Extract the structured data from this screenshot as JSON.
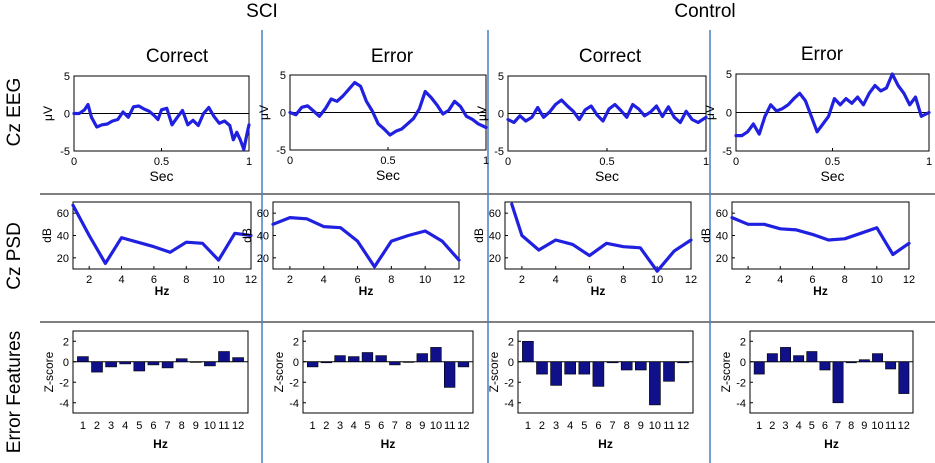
{
  "groups": [
    "SCI",
    "Control"
  ],
  "row_labels": [
    "Cz EEG",
    "Cz PSD",
    "Error Features"
  ],
  "colors": {
    "trace": "#2020e0",
    "bar": "#10108a",
    "divider": "#4a7fc1"
  },
  "chart_data": [
    {
      "type": "line",
      "row": "Cz EEG",
      "group": "SCI",
      "title": "Correct",
      "xlabel": "Sec",
      "ylabel": "μV",
      "xlim": [
        0,
        1
      ],
      "ylim": [
        -5,
        5
      ],
      "xticks": [
        "0",
        "0.5",
        "1"
      ],
      "yticks": [
        "5",
        "0",
        "-5"
      ],
      "zero_line": true,
      "x": [
        0,
        0.03,
        0.06,
        0.08,
        0.1,
        0.13,
        0.16,
        0.19,
        0.22,
        0.25,
        0.28,
        0.31,
        0.34,
        0.37,
        0.4,
        0.43,
        0.46,
        0.48,
        0.5,
        0.53,
        0.56,
        0.59,
        0.62,
        0.65,
        0.68,
        0.71,
        0.74,
        0.77,
        0.8,
        0.83,
        0.86,
        0.89,
        0.91,
        0.93,
        0.95,
        0.97,
        0.99,
        1.0
      ],
      "y": [
        0,
        0,
        0.5,
        1.2,
        -0.5,
        -1.8,
        -1.5,
        -1.4,
        -1.0,
        -0.8,
        0.2,
        -0.5,
        0.9,
        1.0,
        0.6,
        0.3,
        -0.3,
        -0.8,
        0.5,
        0.7,
        -1.5,
        -0.5,
        0.4,
        -1.5,
        -0.9,
        -1.6,
        0,
        0.8,
        -0.4,
        -1.3,
        -1.0,
        -1.6,
        -3.5,
        -2.5,
        -3.5,
        -4.8,
        -2.5,
        -1.5
      ]
    },
    {
      "type": "line",
      "row": "Cz EEG",
      "group": "SCI",
      "title": "Error",
      "xlabel": "Sec",
      "ylabel": "μV",
      "xlim": [
        0,
        1
      ],
      "ylim": [
        -5,
        5
      ],
      "xticks": [
        "0",
        "0.5",
        "1"
      ],
      "yticks": [
        "5",
        "0",
        "-5"
      ],
      "zero_line": true,
      "x": [
        0,
        0.03,
        0.06,
        0.09,
        0.12,
        0.15,
        0.18,
        0.21,
        0.24,
        0.27,
        0.3,
        0.33,
        0.36,
        0.39,
        0.42,
        0.45,
        0.48,
        0.51,
        0.54,
        0.57,
        0.6,
        0.63,
        0.66,
        0.69,
        0.72,
        0.75,
        0.78,
        0.81,
        0.84,
        0.87,
        0.9,
        0.93,
        0.96,
        1.0
      ],
      "y": [
        0,
        -0.3,
        0.7,
        0.9,
        0.2,
        -0.5,
        0.5,
        1.8,
        1.5,
        2.2,
        3.1,
        4.0,
        3.5,
        1.5,
        0.2,
        -1.5,
        -2.2,
        -3.0,
        -2.5,
        -2.2,
        -1.5,
        -0.8,
        0.5,
        2.8,
        2.0,
        1.0,
        -0.2,
        0.3,
        1.5,
        0.8,
        -0.5,
        -0.9,
        -1.5,
        -2.0
      ]
    },
    {
      "type": "line",
      "row": "Cz EEG",
      "group": "Control",
      "title": "Correct",
      "xlabel": "Sec",
      "ylabel": "μV",
      "xlim": [
        0,
        1
      ],
      "ylim": [
        -5,
        5
      ],
      "xticks": [
        "0",
        "0.5",
        "1"
      ],
      "yticks": [
        "5",
        "0",
        "-5"
      ],
      "zero_line": true,
      "x": [
        0,
        0.03,
        0.06,
        0.09,
        0.12,
        0.15,
        0.18,
        0.21,
        0.24,
        0.27,
        0.3,
        0.33,
        0.36,
        0.39,
        0.42,
        0.45,
        0.48,
        0.51,
        0.54,
        0.57,
        0.6,
        0.63,
        0.66,
        0.69,
        0.72,
        0.75,
        0.78,
        0.81,
        0.84,
        0.87,
        0.9,
        0.93,
        0.96,
        1.0
      ],
      "y": [
        -0.8,
        -1.2,
        -0.3,
        -1.0,
        -0.5,
        0.8,
        -0.5,
        0.2,
        1.2,
        1.8,
        1.0,
        0.3,
        -0.8,
        0.5,
        1.0,
        -0.2,
        -1.0,
        0.6,
        1.2,
        0.4,
        -0.5,
        1.2,
        0.6,
        -0.3,
        0.2,
        1.0,
        -0.4,
        0.9,
        -0.5,
        -1.2,
        0.3,
        -0.8,
        -1.2,
        -0.5
      ]
    },
    {
      "type": "line",
      "row": "Cz EEG",
      "group": "Control",
      "title": "Error",
      "xlabel": "Sec",
      "ylabel": "μV",
      "xlim": [
        0,
        1
      ],
      "ylim": [
        -5,
        5
      ],
      "xticks": [
        "0",
        "0.5",
        "1"
      ],
      "yticks": [
        "5",
        "0",
        "-5"
      ],
      "zero_line": true,
      "x": [
        0,
        0.03,
        0.06,
        0.09,
        0.12,
        0.15,
        0.18,
        0.21,
        0.24,
        0.27,
        0.3,
        0.33,
        0.36,
        0.39,
        0.42,
        0.45,
        0.48,
        0.51,
        0.54,
        0.57,
        0.6,
        0.63,
        0.66,
        0.69,
        0.72,
        0.75,
        0.78,
        0.81,
        0.84,
        0.87,
        0.9,
        0.93,
        0.96,
        1.0
      ],
      "y": [
        -3.0,
        -3.0,
        -2.5,
        -1.5,
        -2.8,
        -0.5,
        1.0,
        0.2,
        0.5,
        1.0,
        1.8,
        2.5,
        1.5,
        -0.5,
        -2.5,
        -1.5,
        -0.5,
        1.8,
        1.0,
        1.8,
        1.2,
        2.0,
        1.0,
        2.5,
        3.5,
        2.8,
        3.2,
        5.0,
        3.5,
        2.5,
        1.0,
        2.0,
        -0.5,
        0
      ]
    },
    {
      "type": "line",
      "row": "Cz PSD",
      "group": "SCI",
      "xlabel": "Hz",
      "ylabel": "dB",
      "xlim": [
        1,
        12
      ],
      "ylim": [
        10,
        70
      ],
      "xticks": [
        "2",
        "4",
        "6",
        "8",
        "10",
        "12"
      ],
      "yticks": [
        "60",
        "40",
        "20"
      ],
      "x": [
        1,
        2,
        3,
        4,
        5,
        6,
        7,
        8,
        9,
        10,
        11,
        12
      ],
      "y": [
        67,
        40,
        15,
        38,
        34,
        30,
        25,
        34,
        33,
        18,
        42,
        40
      ]
    },
    {
      "type": "line",
      "row": "Cz PSD",
      "group": "SCI",
      "xlabel": "Hz",
      "ylabel": "dB",
      "xlim": [
        1,
        12
      ],
      "ylim": [
        10,
        70
      ],
      "xticks": [
        "2",
        "4",
        "6",
        "8",
        "10",
        "12"
      ],
      "yticks": [
        "60",
        "40",
        "20"
      ],
      "x": [
        1,
        2,
        3,
        4,
        5,
        6,
        7,
        8,
        9,
        10,
        11,
        12
      ],
      "y": [
        50,
        56,
        55,
        48,
        47,
        35,
        12,
        35,
        40,
        44,
        35,
        18
      ]
    },
    {
      "type": "line",
      "row": "Cz PSD",
      "group": "Control",
      "xlabel": "Hz",
      "ylabel": "dB",
      "xlim": [
        1,
        12
      ],
      "ylim": [
        10,
        70
      ],
      "xticks": [
        "2",
        "4",
        "6",
        "8",
        "10",
        "12"
      ],
      "yticks": [
        "60",
        "40",
        "20"
      ],
      "x": [
        1.4,
        2,
        3,
        4,
        5,
        6,
        7,
        8,
        9,
        10,
        11,
        12
      ],
      "y": [
        68,
        40,
        27,
        36,
        32,
        22,
        33,
        30,
        29,
        8,
        26,
        36
      ]
    },
    {
      "type": "line",
      "row": "Cz PSD",
      "group": "Control",
      "xlabel": "Hz",
      "ylabel": "dB",
      "xlim": [
        1,
        12
      ],
      "ylim": [
        10,
        70
      ],
      "xticks": [
        "2",
        "4",
        "6",
        "8",
        "10",
        "12"
      ],
      "yticks": [
        "60",
        "40",
        "20"
      ],
      "x": [
        1,
        2,
        3,
        4,
        5,
        6,
        7,
        8,
        9,
        10,
        11,
        12
      ],
      "y": [
        56,
        50,
        50,
        46,
        45,
        41,
        36,
        37,
        42,
        47,
        23,
        33
      ]
    },
    {
      "type": "bar",
      "row": "Error Features",
      "group": "SCI",
      "xlabel": "Hz",
      "ylabel": "Z-score",
      "ylim": [
        -5,
        3
      ],
      "categories": [
        "1",
        "2",
        "3",
        "4",
        "5",
        "6",
        "7",
        "8",
        "9",
        "10",
        "11",
        "12"
      ],
      "yticks": [
        "2",
        "0",
        "-2",
        "-4"
      ],
      "values": [
        0.5,
        -1.0,
        -0.5,
        -0.2,
        -0.9,
        -0.3,
        -0.6,
        0.3,
        0,
        -0.4,
        1.0,
        0.4
      ]
    },
    {
      "type": "bar",
      "row": "Error Features",
      "group": "SCI",
      "xlabel": "Hz",
      "ylabel": "Z-score",
      "ylim": [
        -5,
        3
      ],
      "categories": [
        "1",
        "2",
        "3",
        "4",
        "5",
        "6",
        "7",
        "8",
        "9",
        "10",
        "11",
        "12"
      ],
      "yticks": [
        "2",
        "0",
        "-2",
        "-4"
      ],
      "values": [
        -0.5,
        -0.1,
        0.6,
        0.5,
        0.9,
        0.6,
        -0.3,
        0,
        0.8,
        1.4,
        -2.5,
        -0.5
      ]
    },
    {
      "type": "bar",
      "row": "Error Features",
      "group": "Control",
      "xlabel": "Hz",
      "ylabel": "Z-score",
      "ylim": [
        -5,
        3
      ],
      "categories": [
        "1",
        "2",
        "3",
        "4",
        "5",
        "6",
        "7",
        "8",
        "9",
        "10",
        "11",
        "12"
      ],
      "yticks": [
        "2",
        "0",
        "-2",
        "-4"
      ],
      "values": [
        2.0,
        -1.2,
        -2.3,
        -1.2,
        -1.2,
        -2.4,
        -0.1,
        -0.8,
        -0.8,
        -4.2,
        -1.9,
        -0.1
      ]
    },
    {
      "type": "bar",
      "row": "Error Features",
      "group": "Control",
      "xlabel": "Hz",
      "ylabel": "Z-score",
      "ylim": [
        -5,
        3
      ],
      "categories": [
        "1",
        "2",
        "3",
        "4",
        "5",
        "6",
        "7",
        "8",
        "9",
        "10",
        "11",
        "12"
      ],
      "yticks": [
        "2",
        "0",
        "-2",
        "-4"
      ],
      "values": [
        -1.2,
        0.8,
        1.4,
        0.6,
        1.0,
        -0.8,
        -4.0,
        -0.1,
        0.2,
        0.8,
        -0.7,
        -3.1
      ]
    }
  ]
}
